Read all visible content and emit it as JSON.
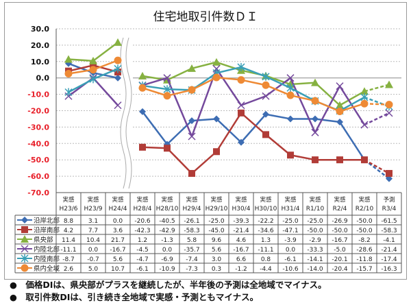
{
  "chart_data": {
    "type": "line",
    "title": "住宅地取引件数ＤＩ",
    "ylim": [
      -70,
      30
    ],
    "yticks": [
      "30.0",
      "20.0",
      "10.0",
      "0.0",
      "-10.0",
      "-20.0",
      "-30.0",
      "-40.0",
      "-50.0",
      "-60.0",
      "-70.0"
    ],
    "grid": true,
    "axis_break_after_index": 2,
    "forecast_last_point": true,
    "categories": [
      {
        "kind": "実感",
        "label": "H23/6"
      },
      {
        "kind": "実感",
        "label": "H23/9"
      },
      {
        "kind": "実感",
        "label": "H24/4"
      },
      {
        "kind": "実感",
        "label": "H28/4"
      },
      {
        "kind": "実感",
        "label": "H28/10"
      },
      {
        "kind": "実感",
        "label": "H29/4"
      },
      {
        "kind": "実感",
        "label": "H29/10"
      },
      {
        "kind": "実感",
        "label": "H30/4"
      },
      {
        "kind": "実感",
        "label": "H30/10"
      },
      {
        "kind": "実感",
        "label": "H31/4"
      },
      {
        "kind": "実感",
        "label": "R1/10"
      },
      {
        "kind": "実感",
        "label": "R2/4"
      },
      {
        "kind": "実感",
        "label": "R2/10"
      },
      {
        "kind": "予測",
        "label": "R3/4"
      }
    ],
    "series": [
      {
        "name": "沿岸北部",
        "color": "#3d6db3",
        "marker": "diamond",
        "values": [
          8.8,
          3.1,
          0.0,
          -20.6,
          -40.5,
          -26.1,
          -25.0,
          -39.3,
          -22.2,
          -25.0,
          -25.0,
          -26.9,
          -50.0,
          -61.5
        ]
      },
      {
        "name": "沿岸南部",
        "color": "#b13c37",
        "marker": "square",
        "values": [
          4.2,
          7.7,
          3.6,
          -42.3,
          -42.9,
          -58.3,
          -45.0,
          -21.4,
          -34.6,
          -47.1,
          -50.0,
          -50.0,
          -50.0,
          -58.3
        ]
      },
      {
        "name": "県央部",
        "color": "#86b141",
        "marker": "triangle",
        "values": [
          11.4,
          10.4,
          21.7,
          1.2,
          -1.3,
          5.8,
          9.6,
          4.6,
          1.3,
          -3.9,
          -2.9,
          -16.7,
          -8.2,
          -4.1
        ]
      },
      {
        "name": "内陸北部",
        "color": "#74499c",
        "marker": "x",
        "values": [
          -11.1,
          0.0,
          -16.7,
          -4.5,
          0.0,
          -35.7,
          5.6,
          -16.7,
          -11.1,
          0.0,
          -33.3,
          -5.0,
          -28.6,
          -21.4
        ]
      },
      {
        "name": "内陸南部",
        "color": "#3a9fb6",
        "marker": "star",
        "values": [
          -8.7,
          -0.7,
          5.6,
          -4.7,
          -6.9,
          -7.4,
          3.0,
          6.6,
          0.8,
          -6.1,
          -14.1,
          -20.1,
          -11.8,
          -17.4
        ]
      },
      {
        "name": "県内全域",
        "color": "#ee8a35",
        "marker": "circle",
        "values": [
          2.6,
          5.0,
          10.7,
          -6.1,
          -10.9,
          -7.3,
          0.3,
          -1.2,
          -4.4,
          -10.6,
          -14.0,
          -20.4,
          -15.7,
          -16.3
        ]
      }
    ],
    "table_values": [
      [
        "8.8",
        "3.1",
        "0.0",
        "-20.6",
        "-40.5",
        "-26.1",
        "-25.0",
        "-39.3",
        "-22.2",
        "-25.0",
        "-25.0",
        "-26.9",
        "-50.0",
        "-61.5"
      ],
      [
        "4.2",
        "7.7",
        "3.6",
        "-42.3",
        "-42.9",
        "-58.3",
        "-45.0",
        "-21.4",
        "-34.6",
        "-47.1",
        "-50.0",
        "-50.0",
        "-50.0",
        "-58.3"
      ],
      [
        "11.4",
        "10.4",
        "21.7",
        "1.2",
        "-1.3",
        "5.8",
        "9.6",
        "4.6",
        "1.3",
        "-3.9",
        "-2.9",
        "-16.7",
        "-8.2",
        "-4.1"
      ],
      [
        "-11.1",
        "0.0",
        "-16.7",
        "-4.5",
        "0.0",
        "-35.7",
        "5.6",
        "-16.7",
        "-11.1",
        "0.0",
        "-33.3",
        "-5.0",
        "-28.6",
        "-21.4"
      ],
      [
        "-8.7",
        "-0.7",
        "5.6",
        "-4.7",
        "-6.9",
        "-7.4",
        "3.0",
        "6.6",
        "0.8",
        "-6.1",
        "-14.1",
        "-20.1",
        "-11.8",
        "-17.4"
      ],
      [
        "2.6",
        "5.0",
        "10.7",
        "-6.1",
        "-10.9",
        "-7.3",
        "0.3",
        "-1.2",
        "-4.4",
        "-10.6",
        "-14.0",
        "-20.4",
        "-15.7",
        "-16.3"
      ]
    ]
  },
  "notes": [
    "●　価格DIは、県央部がプラスを継続したが、半年後の予測は全地域でマイナス。",
    "●　取引件数DIは、引き続き全地域で実感・予測ともマイナス。"
  ]
}
